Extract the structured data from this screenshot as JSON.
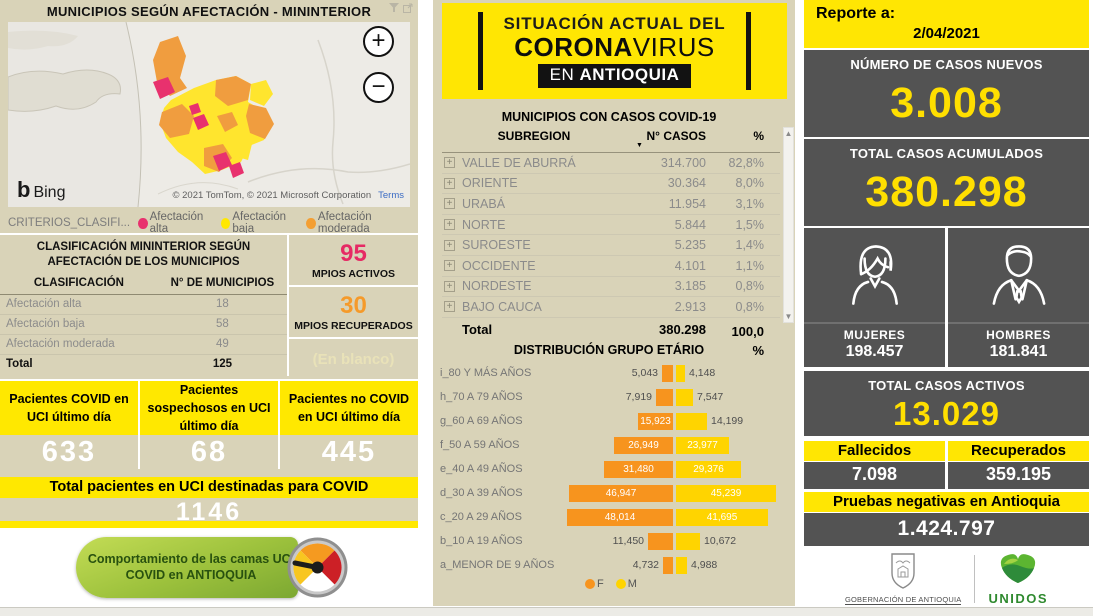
{
  "left_panel": {
    "title": "MUNICIPIOS SEGÚN AFECTACIÓN - MININTERIOR",
    "map": {
      "zoom_in_label": "+",
      "zoom_out_label": "−",
      "bing_glyph": "b",
      "bing_word": "Bing",
      "attribution": "© 2021 TomTom, © 2021 Microsoft Corporation",
      "terms_label": "Terms"
    },
    "legend": {
      "title": "CRITERIOS_CLASIFI...",
      "items": [
        {
          "label": "Afectación alta",
          "color": "#e8316e"
        },
        {
          "label": "Afectación baja",
          "color": "#ffe800"
        },
        {
          "label": "Afectación moderada",
          "color": "#f49f33"
        }
      ]
    },
    "classification": {
      "title": "CLASIFICACIÓN MININTERIOR SEGÚN AFECTACIÓN DE LOS MUNICIPIOS",
      "col_label": "CLASIFICACIÓN",
      "col_value": "N° DE MUNICIPIOS",
      "rows": [
        {
          "label": "Afectación alta",
          "value": "18"
        },
        {
          "label": "Afectación baja",
          "value": "58"
        },
        {
          "label": "Afectación moderada",
          "value": "49"
        }
      ],
      "total_label": "Total",
      "total_value": "125"
    },
    "mpios": {
      "activos_value": "95",
      "activos_label": "MPIOS ACTIVOS",
      "recuperados_value": "30",
      "recuperados_label": "MPIOS RECUPERADOS",
      "blank_label": "(En blanco)"
    },
    "uci_cards": [
      {
        "title": "Pacientes COVID en UCI último día",
        "value": "633"
      },
      {
        "title": "Pacientes sospechosos en UCI último día",
        "value": "68"
      },
      {
        "title": "Pacientes no COVID en UCI último día",
        "value": "445"
      }
    ],
    "uci_total": {
      "title": "Total pacientes en UCI destinadas para COVID",
      "value": "1146"
    },
    "uci_button_label": "Comportamiento de las camas UCI COVID en ANTIOQUIA"
  },
  "center_panel": {
    "banner": {
      "line1": "SITUACIÓN ACTUAL DEL",
      "line2_bold": "CORONA",
      "line2_light": "VIRUS",
      "line3_prefix": "EN ",
      "line3_bold": "ANTIOQUIA"
    },
    "cases_table": {
      "title": "MUNICIPIOS CON CASOS COVID-19",
      "col_subregion": "SUBREGION",
      "col_cases": "N° CASOS",
      "col_pct": "%",
      "sort_indicator": "▼",
      "expand_glyph": "+",
      "rows": [
        {
          "name": "VALLE DE ABURRÁ",
          "cases": "314.700",
          "pct": "82,8%"
        },
        {
          "name": "ORIENTE",
          "cases": "30.364",
          "pct": "8,0%"
        },
        {
          "name": "URABÁ",
          "cases": "11.954",
          "pct": "3,1%"
        },
        {
          "name": "NORTE",
          "cases": "5.844",
          "pct": "1,5%"
        },
        {
          "name": "SUROESTE",
          "cases": "5.235",
          "pct": "1,4%"
        },
        {
          "name": "OCCIDENTE",
          "cases": "4.101",
          "pct": "1,1%"
        },
        {
          "name": "NORDESTE",
          "cases": "3.185",
          "pct": "0,8%"
        },
        {
          "name": "BAJO CAUCA",
          "cases": "2.913",
          "pct": "0,8%"
        }
      ],
      "total": {
        "name": "Total",
        "cases": "380.298",
        "pct": "100,0 %"
      }
    }
  },
  "chart_data": {
    "type": "bar",
    "title": "DISTRIBUCIÓN GRUPO ETÁRIO",
    "orientation": "horizontal-pyramid",
    "categories": [
      "i_80 Y MÁS AÑOS",
      "h_70 A 79 AÑOS",
      "g_60 A 69 AÑOS",
      "f_50 A 59 AÑOS",
      "e_40 A 49 AÑOS",
      "d_30 A 39 AÑOS",
      "c_20 A 29 AÑOS",
      "b_10 A 19 AÑOS",
      "a_MENOR DE 9 AÑOS"
    ],
    "series": [
      {
        "name": "F",
        "color": "#f7941e",
        "values": [
          5043,
          7919,
          15923,
          26949,
          31480,
          46947,
          48014,
          11450,
          4732
        ],
        "labels": [
          "5,043",
          "7,919",
          "15,923",
          "26,949",
          "31,480",
          "46,947",
          "48,014",
          "11,450",
          "4,732"
        ]
      },
      {
        "name": "M",
        "color": "#ffd400",
        "values": [
          4148,
          7547,
          14199,
          23977,
          29376,
          45239,
          41695,
          10672,
          4988
        ],
        "labels": [
          "4,148",
          "7,547",
          "14,199",
          "23,977",
          "29,376",
          "45,239",
          "41,695",
          "10,672",
          "4,988"
        ]
      }
    ],
    "xmax": 48014,
    "legend_position": "bottom",
    "legend": [
      {
        "label": "F",
        "color": "#f7941e"
      },
      {
        "label": "M",
        "color": "#ffd400"
      }
    ]
  },
  "right_panel": {
    "report_label": "Reporte a:",
    "report_date": "2/04/2021",
    "nuevos_label": "NÚMERO DE CASOS NUEVOS",
    "nuevos_value": "3.008",
    "acumulados_label": "TOTAL CASOS ACUMULADOS",
    "acumulados_value": "380.298",
    "mujeres_label": "MUJERES",
    "mujeres_value": "198.457",
    "hombres_label": "HOMBRES",
    "hombres_value": "181.841",
    "activos_label": "TOTAL CASOS ACTIVOS",
    "activos_value": "13.029",
    "fallecidos_label": "Fallecidos",
    "fallecidos_value": "7.098",
    "recuperados_label": "Recuperados",
    "recuperados_value": "359.195",
    "pruebas_label": "Pruebas negativas en Antioquia",
    "pruebas_value": "1.424.797",
    "gobernacion_label": "GOBERNACIÓN DE ANTIOQUIA",
    "unidos_label": "UNIDOS"
  },
  "colors": {
    "accent_yellow": "#ffe603",
    "header_yellow": "#ffe800",
    "value_yellow": "#ffdf00",
    "dark_box": "#535353",
    "pink": "#e62a64",
    "orange": "#f59a2a",
    "beige": "#d9d3b8"
  }
}
